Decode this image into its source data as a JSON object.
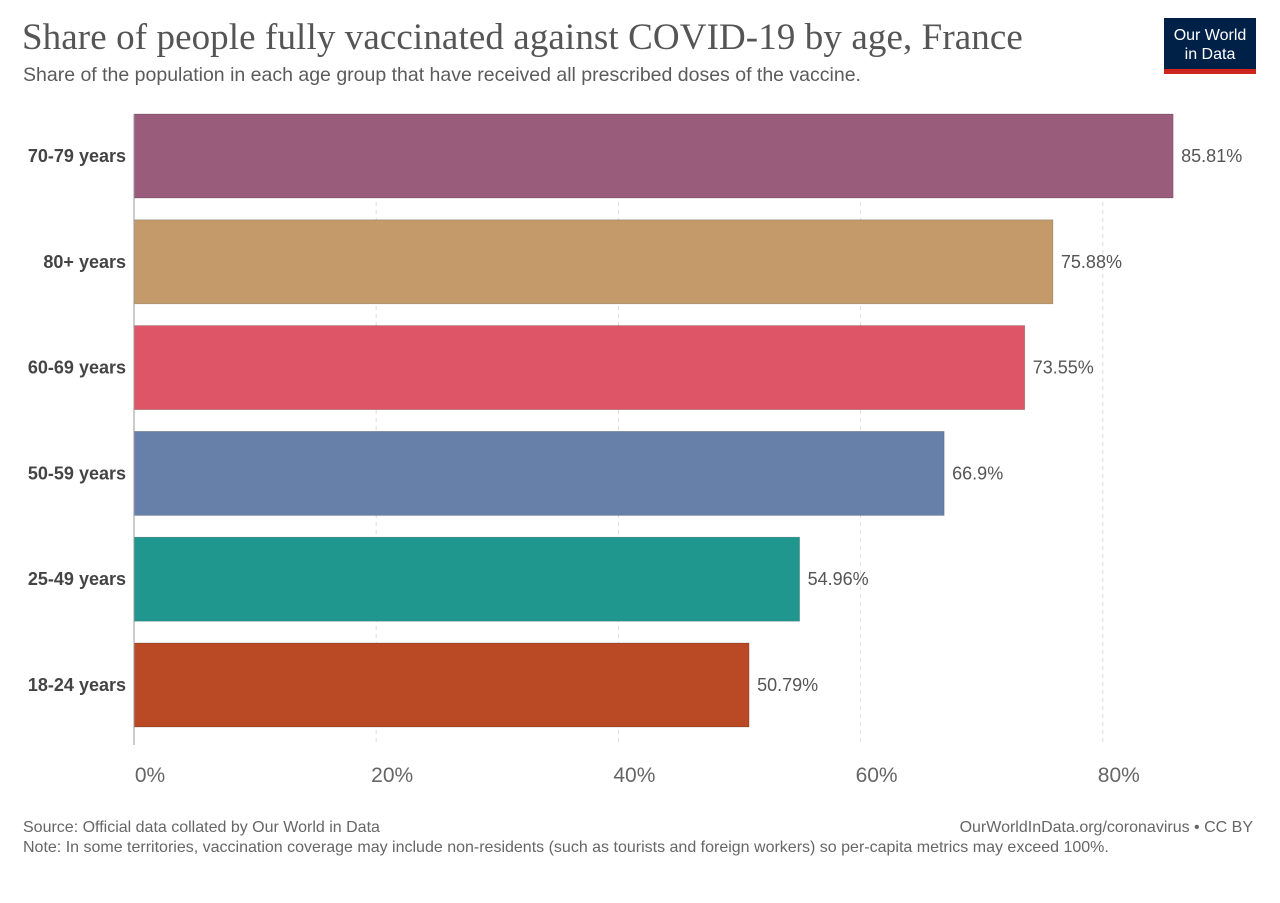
{
  "title": "Share of people fully vaccinated against COVID-19 by age, France",
  "subtitle": "Share of the population in each age group that have received all prescribed doses of the vaccine.",
  "logo": {
    "line1": "Our World",
    "line2": "in Data"
  },
  "footer": {
    "source": "Source: Official data collated by Our World in Data",
    "note": "Note: In some territories, vaccination coverage may include non-residents (such as tourists and foreign workers) so per-capita metrics may exceed 100%.",
    "link": "OurWorldInData.org/coronavirus • CC BY"
  },
  "chart_data": {
    "type": "bar",
    "orientation": "horizontal",
    "categories": [
      "70-79 years",
      "80+ years",
      "60-69 years",
      "50-59 years",
      "25-49 years",
      "18-24 years"
    ],
    "values": [
      85.81,
      75.88,
      73.55,
      66.9,
      54.96,
      50.79
    ],
    "value_labels": [
      "85.81%",
      "75.88%",
      "73.55%",
      "66.9%",
      "54.96%",
      "50.79%"
    ],
    "colors": [
      "#9a5c7b",
      "#c49a6a",
      "#dd5566",
      "#6680aa",
      "#1f978f",
      "#b94a25"
    ],
    "xlim": [
      0,
      86
    ],
    "xticks": [
      0,
      20,
      40,
      60,
      80
    ],
    "xtick_labels": [
      "0%",
      "20%",
      "40%",
      "60%",
      "80%"
    ],
    "grid": "vertical dashed"
  }
}
